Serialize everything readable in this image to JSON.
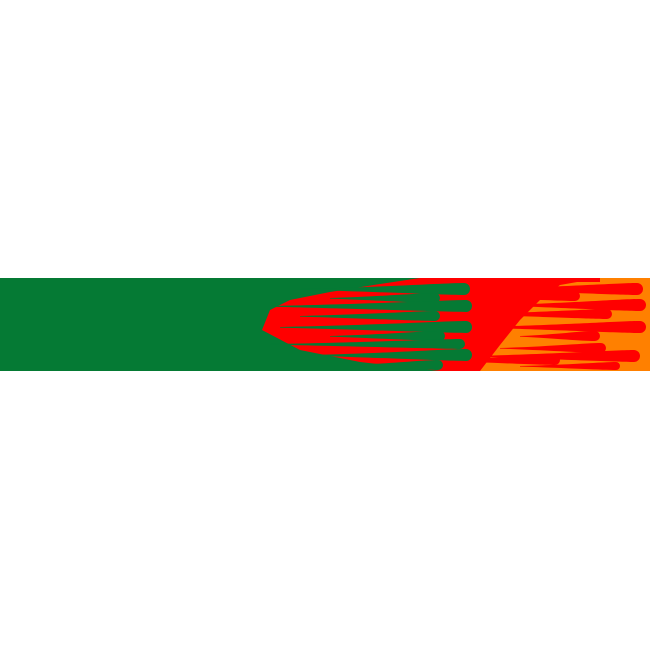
{
  "graphic": {
    "subject": "flames-banner",
    "colors": {
      "background": "#ffffff",
      "outer_flame": "#ff8000",
      "middle_flame": "#ff0000",
      "inner_flame": "#057a34"
    }
  }
}
